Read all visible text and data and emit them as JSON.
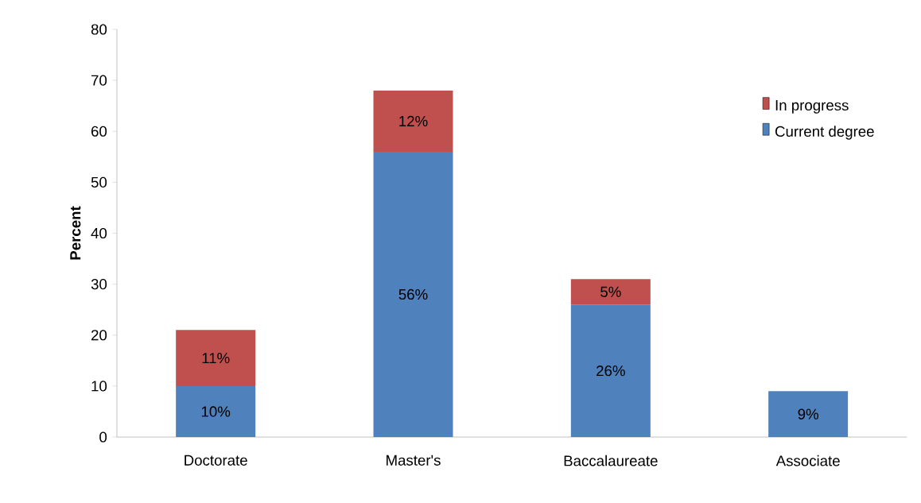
{
  "chart_data": {
    "type": "bar",
    "stacked": true,
    "ylabel": "Percent",
    "categories": [
      "Doctorate",
      "Master's",
      "Baccalaureate",
      "Associate"
    ],
    "series": [
      {
        "name": "Current degree",
        "color": "#4f81bd",
        "values": [
          10,
          56,
          26,
          9
        ],
        "value_labels": [
          "10%",
          "56%",
          "26%",
          "9%"
        ]
      },
      {
        "name": "In progress",
        "color": "#c0504d",
        "values": [
          11,
          12,
          5,
          null
        ],
        "value_labels": [
          "11%",
          "12%",
          "5%",
          null
        ]
      }
    ],
    "ylim": [
      0,
      80
    ],
    "yticks": [
      0,
      10,
      20,
      30,
      40,
      50,
      60,
      70,
      80
    ],
    "grid": false,
    "legend": "right"
  }
}
